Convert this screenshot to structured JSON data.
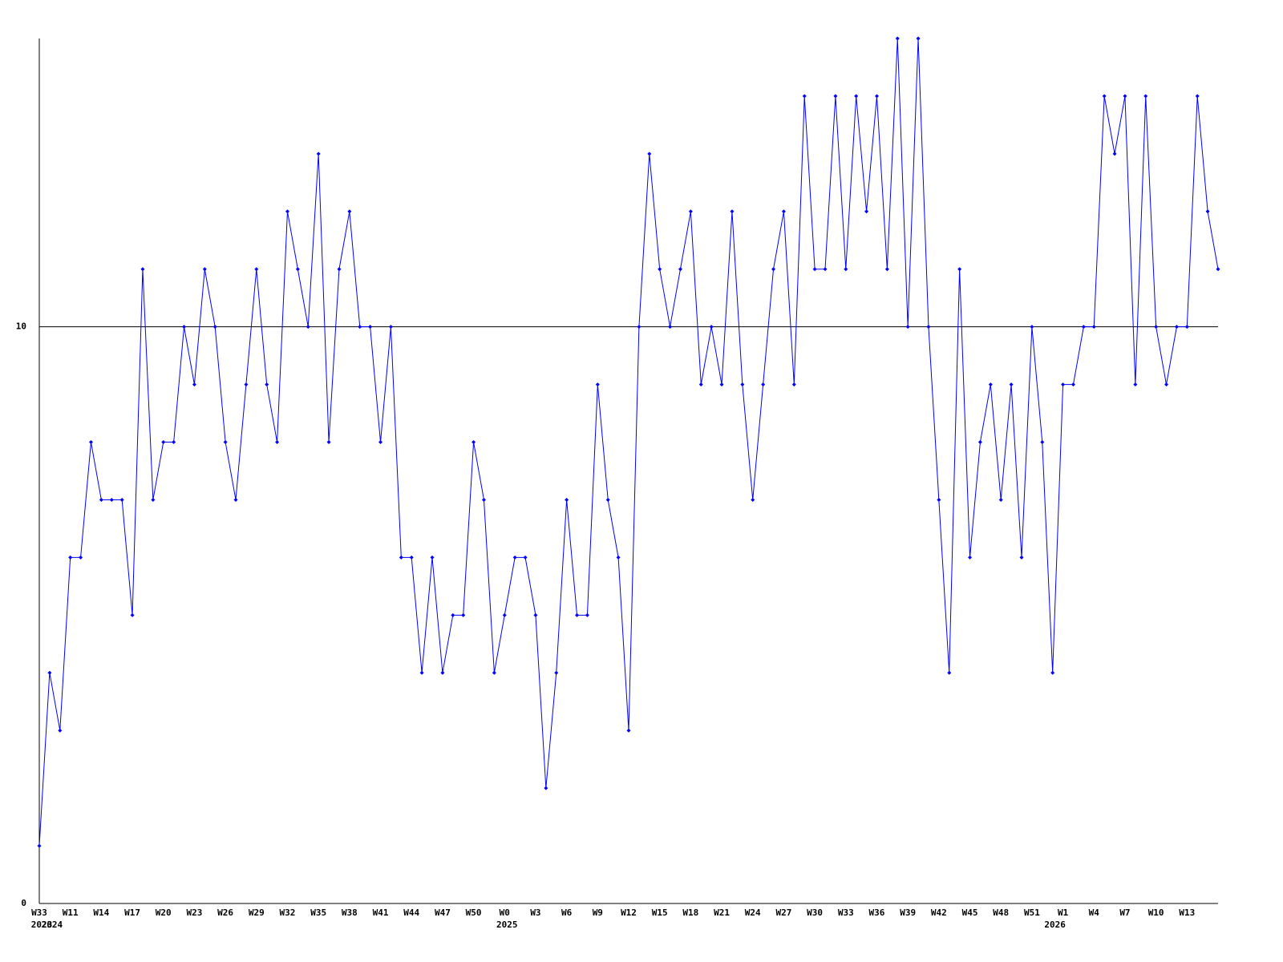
{
  "chart_data": {
    "type": "line",
    "categories": [
      "W33",
      null,
      null,
      "W11",
      null,
      null,
      "W14",
      null,
      null,
      "W17",
      null,
      null,
      "W20",
      null,
      null,
      "W23",
      null,
      null,
      "W26",
      null,
      null,
      "W29",
      null,
      null,
      "W32",
      null,
      null,
      "W35",
      null,
      null,
      "W38",
      null,
      null,
      "W41",
      null,
      null,
      "W44",
      null,
      null,
      "W47",
      null,
      null,
      "W50",
      null,
      null,
      "W0",
      null,
      null,
      "W3",
      null,
      null,
      "W6",
      null,
      null,
      "W9",
      null,
      null,
      "W12",
      null,
      null,
      "W15",
      null,
      null,
      "W18",
      null,
      null,
      "W21",
      null,
      null,
      "W24",
      null,
      null,
      "W27",
      null,
      null,
      "W30",
      null,
      null,
      "W33",
      null,
      null,
      "W36",
      null,
      null,
      "W39",
      null,
      null,
      "W42",
      null,
      null,
      "W45",
      null,
      null,
      "W48",
      null,
      null,
      "W51",
      null,
      null,
      "W1",
      null,
      null,
      "W4",
      null,
      null,
      "W7",
      null,
      null,
      "W10",
      null,
      null,
      "W13",
      null,
      null,
      null
    ],
    "year_labels": [
      "2023",
      "2024",
      null,
      null,
      null,
      null,
      null,
      null,
      null,
      null,
      null,
      null,
      null,
      null,
      null,
      null,
      null,
      null,
      null,
      null,
      null,
      null,
      null,
      null,
      null,
      null,
      null,
      null,
      null,
      null,
      null,
      null,
      null,
      null,
      null,
      null,
      null,
      null,
      null,
      null,
      null,
      null,
      null,
      null,
      null,
      "2025",
      null,
      null,
      null,
      null,
      null,
      null,
      null,
      null,
      null,
      null,
      null,
      null,
      null,
      null,
      null,
      null,
      null,
      null,
      null,
      null,
      null,
      null,
      null,
      null,
      null,
      null,
      null,
      null,
      null,
      null,
      null,
      null,
      null,
      null,
      null,
      null,
      null,
      null,
      null,
      null,
      null,
      null,
      null,
      null,
      null,
      null,
      null,
      null,
      null,
      null,
      null,
      null,
      "2026",
      null,
      null,
      null,
      null,
      null,
      null,
      null,
      null,
      null,
      null,
      null,
      null,
      null,
      null,
      null,
      null
    ],
    "values": [
      1,
      4,
      3,
      6,
      6,
      8,
      7,
      7,
      7,
      5,
      11,
      7,
      8,
      8,
      10,
      9,
      11,
      10,
      8,
      7,
      9,
      11,
      9,
      8,
      12,
      11,
      10,
      13,
      8,
      11,
      12,
      10,
      10,
      8,
      10,
      6,
      6,
      4,
      6,
      4,
      5,
      5,
      8,
      7,
      4,
      5,
      6,
      6,
      5,
      2,
      4,
      7,
      5,
      5,
      9,
      7,
      6,
      3,
      10,
      13,
      11,
      10,
      11,
      12,
      9,
      10,
      9,
      12,
      9,
      7,
      9,
      11,
      12,
      9,
      14,
      11,
      11,
      14,
      11,
      14,
      12,
      14,
      11,
      15,
      10,
      15,
      10,
      7,
      4,
      11,
      6,
      8,
      9,
      7,
      9,
      6,
      10,
      8,
      4,
      9,
      9,
      10,
      10,
      14,
      13,
      14,
      9,
      14,
      10,
      9,
      10,
      10,
      14,
      12,
      11
    ],
    "color": "#0000ff",
    "ylim": [
      0,
      15
    ],
    "yticks": [
      0,
      10
    ],
    "grid": true
  }
}
